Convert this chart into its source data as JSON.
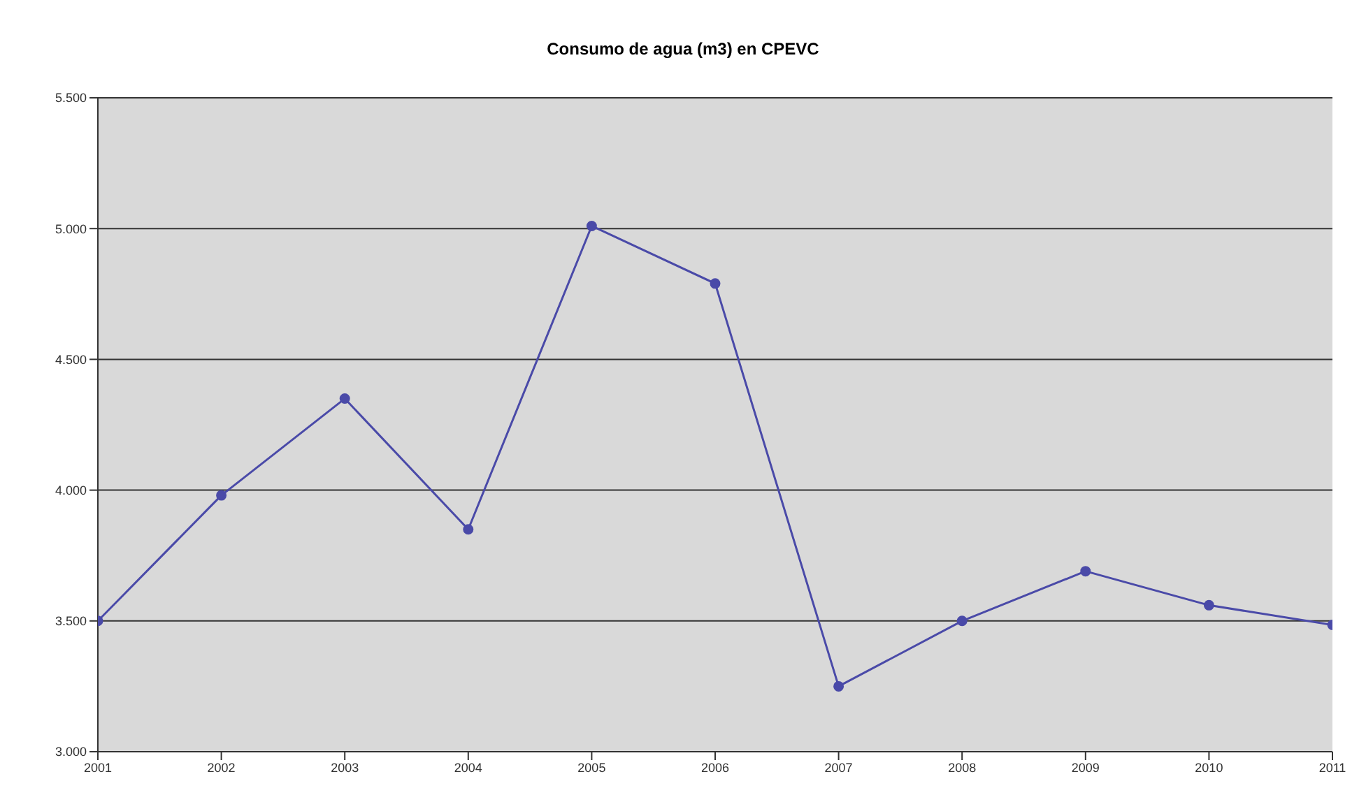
{
  "chart_data": {
    "type": "line",
    "title": "Consumo de agua (m3) en CPEVC",
    "x": [
      2001,
      2002,
      2003,
      2004,
      2005,
      2006,
      2007,
      2008,
      2009,
      2010,
      2011
    ],
    "series": [
      {
        "color": "#4a4aa8",
        "values": [
          3500,
          3980,
          4350,
          3850,
          5010,
          4790,
          3250,
          3500,
          3690,
          3560,
          3485
        ]
      }
    ],
    "xlim": [
      2001,
      2011
    ],
    "xticks": [
      2001,
      2002,
      2003,
      2004,
      2005,
      2006,
      2007,
      2008,
      2009,
      2010,
      2011
    ],
    "ylim": [
      3000,
      5500
    ],
    "yticks": [
      {
        "value": 3000,
        "label": "3.000"
      },
      {
        "value": 3500,
        "label": "3.500"
      },
      {
        "value": 4000,
        "label": "4.000"
      },
      {
        "value": 4500,
        "label": "4.500"
      },
      {
        "value": 5000,
        "label": "5.000"
      },
      {
        "value": 5500,
        "label": "5.500"
      }
    ],
    "grid": "y",
    "marker": "circle",
    "line_style": "solid",
    "legend": false
  }
}
